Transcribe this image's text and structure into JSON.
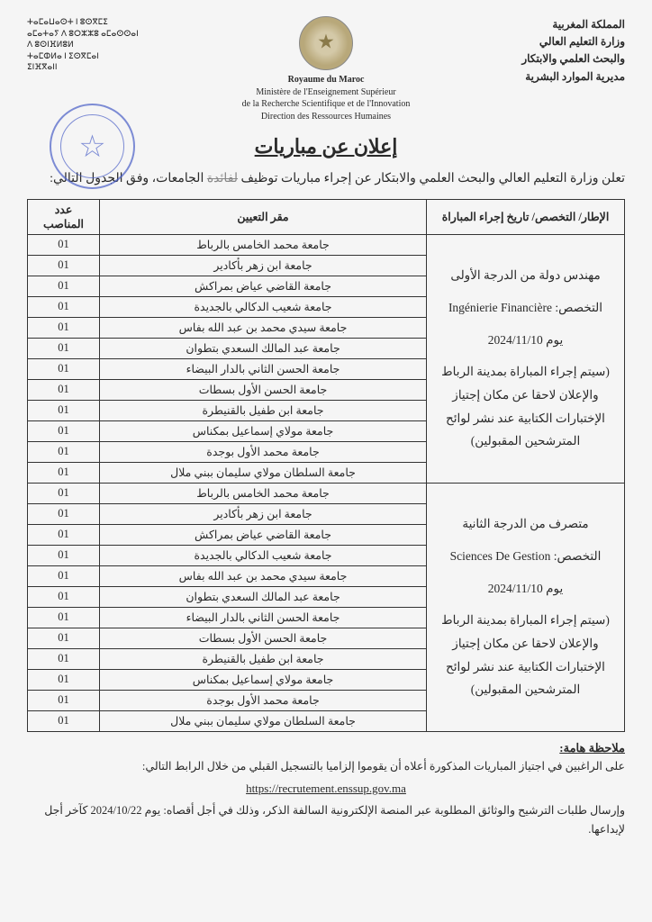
{
  "header": {
    "left_lines": [
      "ⵜⴰⵎⴰⵡⴰⵙⵜ ⵏ ⵓⵙⴳⵎⵉ",
      "ⴰⵎⴰⵜⴰⵢ ⴷ ⵓⵔⵣⵣⵓ ⴰⵎⴰⵙⵙⴰⵏ",
      "ⴷ ⵓⵙⵏⴼⵍⵓⵍ",
      "ⵜⴰⵎⵀⵍⴰ ⵏ ⵉⵙⴳⵎⴰⵏ",
      "ⵉⵏⴼⴳⴰⵏⵏ"
    ],
    "center_country_fr": "Royaume du Maroc",
    "center_lines_fr": [
      "Ministère de l'Enseignement Supérieur",
      "de la Recherche Scientifique et de l'Innovation",
      "Direction des Ressources Humaines"
    ],
    "right_lines": [
      "المملكة المغربية",
      "وزارة التعليم العالي",
      "والبحث العلمي والابتكار",
      "مديرية الموارد البشرية"
    ]
  },
  "title": "إعلان عن مباريات",
  "intro_part1": "تعلن وزارة التعليم العالي والبحث العلمي والابتكار عن إجراء مباريات توظيف",
  "intro_smudge": "لفائدة",
  "intro_part2": "الجامعات، وفق الجدول التالي:",
  "table": {
    "headers": {
      "frame": "الإطار/ التخصص/ تاريخ إجراء المباراة",
      "location": "مقر التعيين",
      "count": "عدد المناصب"
    },
    "groups": [
      {
        "frame_lines": [
          "مهندس دولة من الدرجة الأولى",
          "التخصص: Ingénierie Financière",
          "يوم 2024/11/10",
          "(سيتم إجراء المباراة بمدينة الرباط",
          "والإعلان لاحقا عن مكان إجتياز",
          "الإختبارات الكتابية عند نشر لوائح",
          "المترشحين المقبولين)"
        ],
        "rows": [
          {
            "university": "جامعة محمد الخامس بالرباط",
            "count": "01"
          },
          {
            "university": "جامعة ابن زهر بأكادير",
            "count": "01"
          },
          {
            "university": "جامعة القاضي عياض بمراكش",
            "count": "01"
          },
          {
            "university": "جامعة شعيب الدكالي بالجديدة",
            "count": "01"
          },
          {
            "university": "جامعة سيدي محمد بن عبد الله بفاس",
            "count": "01"
          },
          {
            "university": "جامعة عبد المالك السعدي بتطوان",
            "count": "01"
          },
          {
            "university": "جامعة الحسن الثاني بالدار البيضاء",
            "count": "01"
          },
          {
            "university": "جامعة الحسن الأول بسطات",
            "count": "01"
          },
          {
            "university": "جامعة ابن طفيل بالقنيطرة",
            "count": "01"
          },
          {
            "university": "جامعة مولاي إسماعيل بمكناس",
            "count": "01"
          },
          {
            "university": "جامعة محمد الأول بوجدة",
            "count": "01"
          },
          {
            "university": "جامعة السلطان مولاي سليمان ببني ملال",
            "count": "01"
          }
        ]
      },
      {
        "frame_lines": [
          "متصرف من الدرجة الثانية",
          "التخصص: Sciences De Gestion",
          "يوم 2024/11/10",
          "(سيتم إجراء المباراة بمدينة الرباط",
          "والإعلان لاحقا عن مكان إجتياز",
          "الإختبارات الكتابية عند نشر لوائح",
          "المترشحين المقبولين)"
        ],
        "rows": [
          {
            "university": "جامعة محمد الخامس بالرباط",
            "count": "01"
          },
          {
            "university": "جامعة ابن زهر بأكادير",
            "count": "01"
          },
          {
            "university": "جامعة القاضي عياض بمراكش",
            "count": "01"
          },
          {
            "university": "جامعة شعيب الدكالي بالجديدة",
            "count": "01"
          },
          {
            "university": "جامعة سيدي محمد بن عبد الله بفاس",
            "count": "01"
          },
          {
            "university": "جامعة عبد المالك السعدي بتطوان",
            "count": "01"
          },
          {
            "university": "جامعة الحسن الثاني بالدار البيضاء",
            "count": "01"
          },
          {
            "university": "جامعة الحسن الأول بسطات",
            "count": "01"
          },
          {
            "university": "جامعة ابن طفيل بالقنيطرة",
            "count": "01"
          },
          {
            "university": "جامعة مولاي إسماعيل بمكناس",
            "count": "01"
          },
          {
            "university": "جامعة محمد الأول بوجدة",
            "count": "01"
          },
          {
            "university": "جامعة السلطان مولاي سليمان ببني ملال",
            "count": "01"
          }
        ]
      }
    ]
  },
  "note_title": "ملاحظة هامة:",
  "note_line1": "على الراغبين في اجتياز المباريات المذكورة أعلاه أن يقوموا إلزاميا بالتسجيل القبلي من خلال الرابط التالي:",
  "link_url": "https://recrutement.enssup.gov.ma",
  "note_line2": "وإرسال طلبات الترشيح والوثائق المطلوبة عبر المنصة الإلكترونية السالفة الذكر، وذلك في أجل أقصاه: يوم 2024/10/22 كآخر أجل لإيداعها."
}
